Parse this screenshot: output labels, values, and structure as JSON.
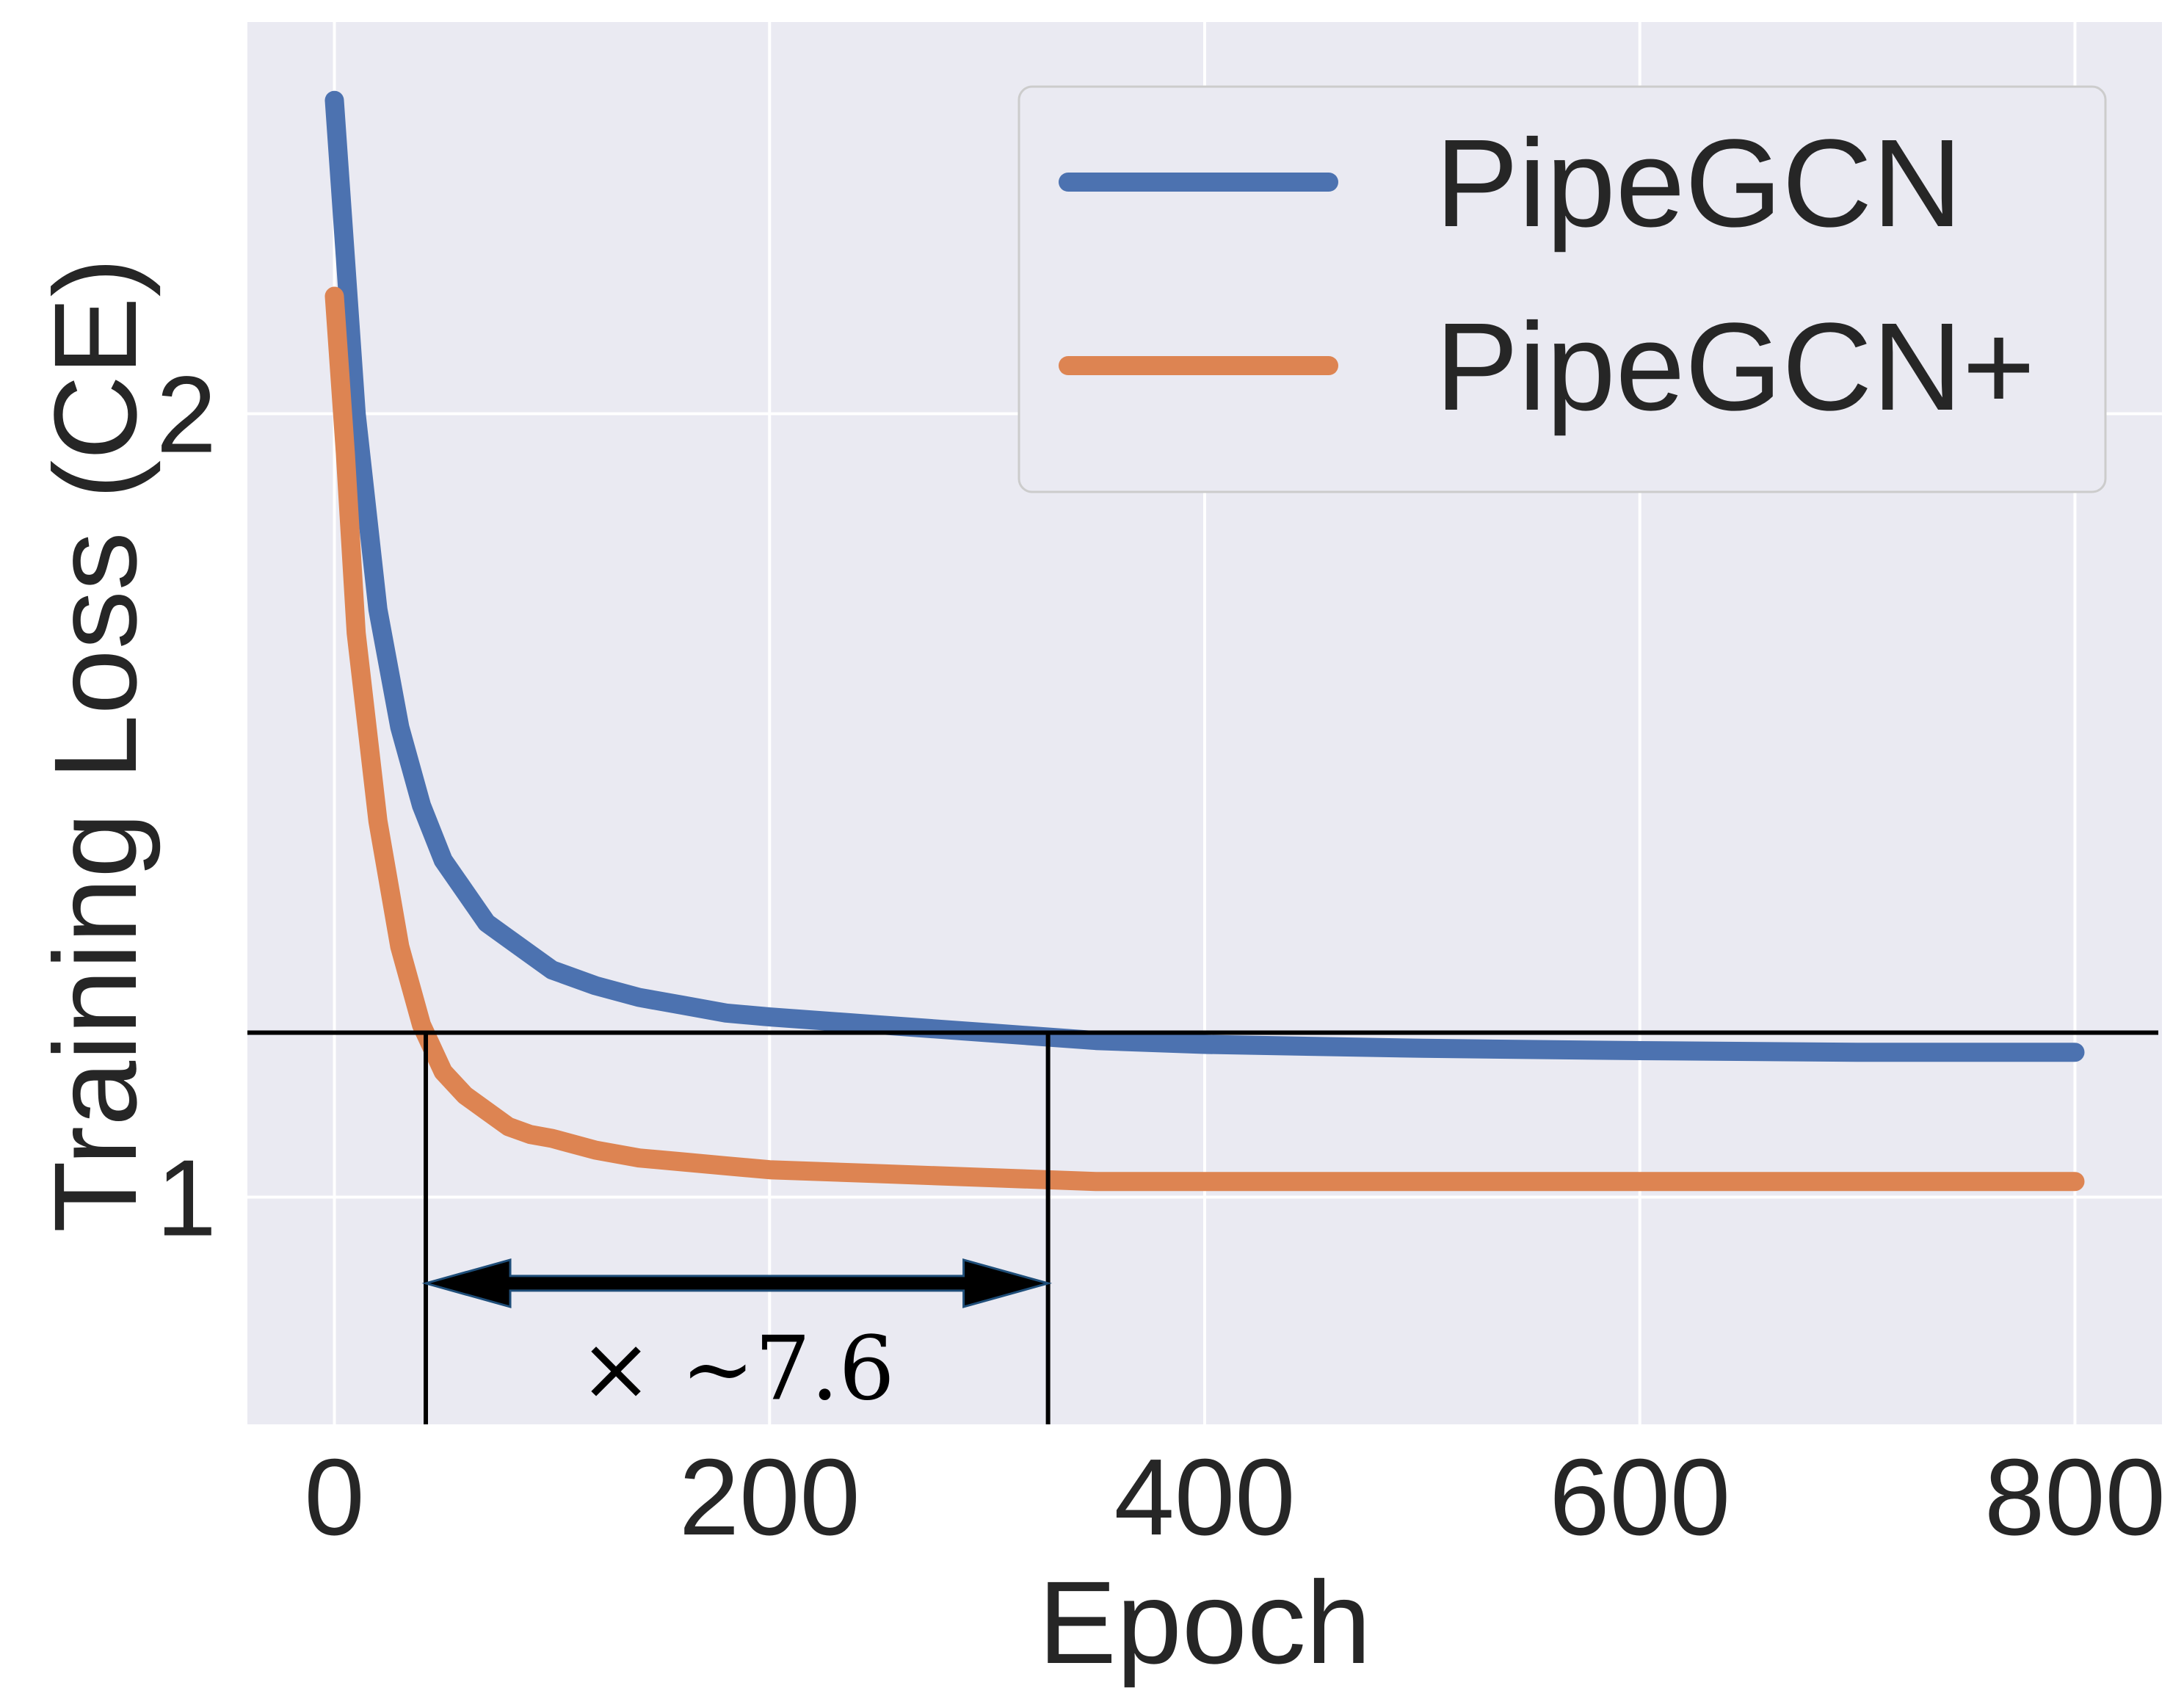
{
  "colors": {
    "background": "#eaeaf2",
    "grid": "#ffffff",
    "text": "#262626",
    "annotation": "#000000",
    "arrow_outline": "#1f4e79"
  },
  "chart_data": {
    "type": "line",
    "xlabel": "Epoch",
    "ylabel": "Training Loss (CE)",
    "xlim": [
      -40,
      840
    ],
    "ylim": [
      0.71,
      2.5
    ],
    "xticks": [
      0,
      200,
      400,
      600,
      800
    ],
    "yticks": [
      1,
      2
    ],
    "xtick_labels": [
      "0",
      "200",
      "400",
      "600",
      "800"
    ],
    "ytick_labels": [
      "1",
      "2"
    ],
    "grid": true,
    "legend": "top-right",
    "series": [
      {
        "name": "PipeGCN",
        "color": "#4c72b0",
        "x": [
          0,
          5,
          10,
          20,
          30,
          40,
          50,
          60,
          70,
          80,
          90,
          100,
          120,
          140,
          160,
          180,
          200,
          250,
          300,
          350,
          400,
          500,
          600,
          700,
          800
        ],
        "y": [
          2.4,
          2.2,
          2.0,
          1.75,
          1.6,
          1.5,
          1.43,
          1.39,
          1.35,
          1.33,
          1.31,
          1.29,
          1.27,
          1.255,
          1.245,
          1.235,
          1.23,
          1.22,
          1.21,
          1.2,
          1.195,
          1.19,
          1.187,
          1.185,
          1.185
        ]
      },
      {
        "name": "PipeGCN+",
        "color": "#dd8452",
        "x": [
          0,
          5,
          10,
          20,
          30,
          40,
          50,
          60,
          70,
          80,
          90,
          100,
          120,
          140,
          160,
          180,
          200,
          250,
          300,
          350,
          400,
          500,
          600,
          700,
          800
        ],
        "y": [
          2.15,
          1.95,
          1.72,
          1.48,
          1.32,
          1.22,
          1.16,
          1.13,
          1.11,
          1.09,
          1.08,
          1.075,
          1.06,
          1.05,
          1.045,
          1.04,
          1.035,
          1.03,
          1.025,
          1.02,
          1.02,
          1.02,
          1.02,
          1.02,
          1.02
        ]
      }
    ],
    "annotations": {
      "hline_y": 1.21,
      "vlines_x": [
        42,
        328
      ],
      "arrow_y": 0.89,
      "arrow_from_x": 42,
      "arrow_to_x": 328,
      "label": "× ~7.6",
      "label_y": 0.78
    }
  }
}
